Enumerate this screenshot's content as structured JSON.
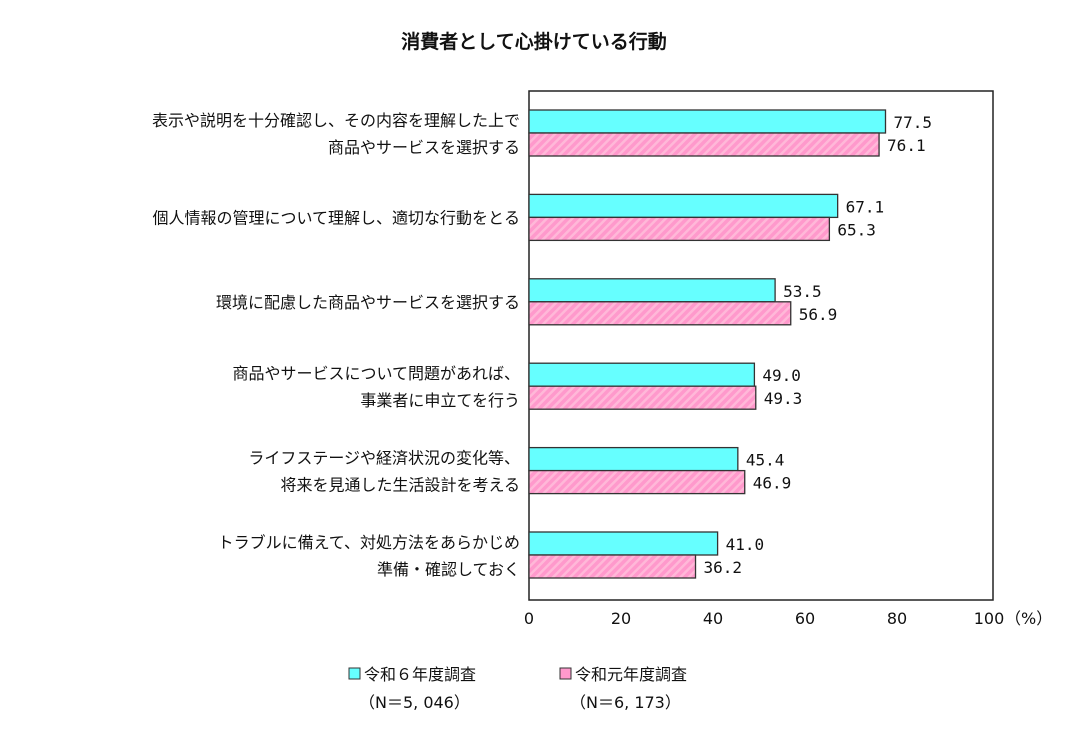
{
  "chart_data": {
    "type": "bar",
    "orientation": "horizontal",
    "title": "消費者として心掛けている行動",
    "categories": [
      [
        "表示や説明を十分確認し、その内容を理解した上で",
        "商品やサービスを選択する"
      ],
      [
        "個人情報の管理について理解し、適切な行動をとる"
      ],
      [
        "環境に配慮した商品やサービスを選択する"
      ],
      [
        "商品やサービスについて問題があれば、",
        "事業者に申立てを行う"
      ],
      [
        "ライフステージや経済状況の変化等、",
        "将来を見通した生活設計を考える"
      ],
      [
        "トラブルに備えて、対処方法をあらかじめ",
        "準備・確認しておく"
      ]
    ],
    "series": [
      {
        "name": "令和６年度調査",
        "n_label": "（N＝5, 046）",
        "color": "#66FFFF",
        "values": [
          77.5,
          67.1,
          53.5,
          49.0,
          45.4,
          41.0
        ]
      },
      {
        "name": "令和元年度調査",
        "n_label": "（N＝6, 173）",
        "color": "#FF99CC",
        "values": [
          76.1,
          65.3,
          56.9,
          49.3,
          46.9,
          36.2
        ]
      }
    ],
    "xlim": [
      0,
      100
    ],
    "xticks": [
      "0",
      "20",
      "40",
      "60",
      "80",
      "100"
    ],
    "xunit": "（%）",
    "grid": false,
    "legend_position": "bottom"
  }
}
